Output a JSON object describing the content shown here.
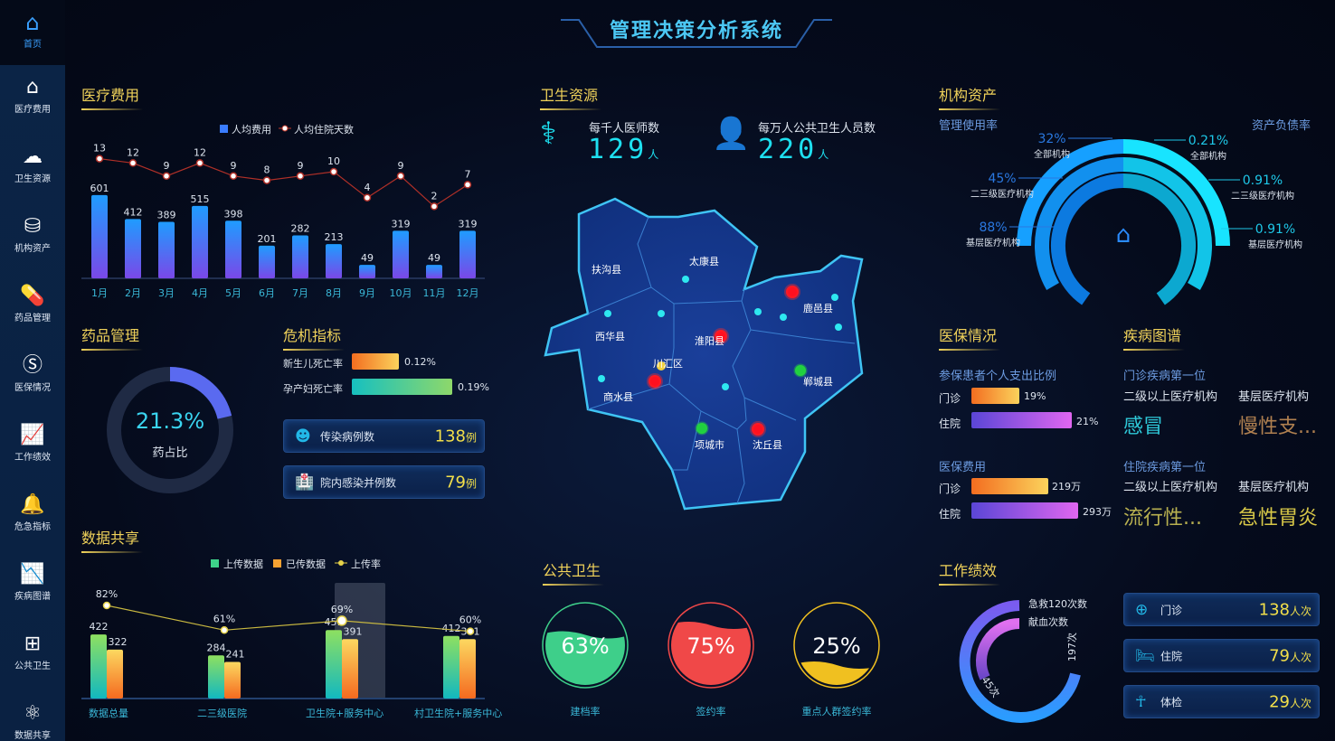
{
  "title": "管理决策分析系统",
  "sidebar": {
    "home": {
      "label": "首页",
      "icon": "home-icon"
    },
    "items": [
      {
        "label": "医疗费用",
        "icon": "house-yuan-icon"
      },
      {
        "label": "卫生资源",
        "icon": "cloud-icon"
      },
      {
        "label": "机构资产",
        "icon": "coins-icon"
      },
      {
        "label": "药品管理",
        "icon": "pill-icon"
      },
      {
        "label": "医保情况",
        "icon": "si-icon"
      },
      {
        "label": "工作绩效",
        "icon": "line-chart-icon"
      },
      {
        "label": "危急指标",
        "icon": "bell-icon"
      },
      {
        "label": "疾病图谱",
        "icon": "trend-icon"
      },
      {
        "label": "公共卫生",
        "icon": "plus-box-icon"
      },
      {
        "label": "数据共享",
        "icon": "share-icon"
      }
    ]
  },
  "sections": {
    "medical_cost": "医疗费用",
    "health_resources": "卫生资源",
    "assets": "机构资产",
    "drug": "药品管理",
    "crisis": "危机指标",
    "insurance": "医保情况",
    "disease": "疾病图谱",
    "data_share": "数据共享",
    "public_health": "公共卫生",
    "performance": "工作绩效"
  },
  "chart_data": [
    {
      "type": "bar",
      "name": "medical-cost",
      "legend": [
        "人均费用",
        "人均住院天数"
      ],
      "categories": [
        "1月",
        "2月",
        "3月",
        "4月",
        "5月",
        "6月",
        "7月",
        "8月",
        "9月",
        "10月",
        "11月",
        "12月"
      ],
      "series": [
        {
          "name": "人均费用",
          "type": "bar",
          "values": [
            601,
            412,
            389,
            515,
            398,
            201,
            282,
            213,
            49,
            319,
            49,
            319
          ],
          "color": "#2a9cff"
        },
        {
          "name": "人均住院天数",
          "type": "line",
          "values": [
            13,
            12,
            9,
            12,
            9,
            8,
            9,
            10,
            4,
            9,
            2,
            7
          ],
          "color": "#c0392b"
        }
      ]
    },
    {
      "type": "bar",
      "name": "data-share",
      "legend": [
        "上传数据",
        "已传数据",
        "上传率"
      ],
      "categories": [
        "数据总量",
        "二三级医院",
        "卫生院+服务中心",
        "村卫生院+服务中心"
      ],
      "series": [
        {
          "name": "上传数据",
          "type": "bar",
          "values": [
            422,
            284,
            451,
            412
          ],
          "color": "#3ed28a"
        },
        {
          "name": "已传数据",
          "type": "bar",
          "values": [
            322,
            241,
            391,
            391
          ],
          "color": "#f7a232"
        },
        {
          "name": "上传率",
          "type": "line",
          "values": [
            82,
            61,
            69,
            60
          ],
          "unit": "%",
          "color": "#e6d24a"
        }
      ],
      "highlight": "卫生院+服务中心"
    }
  ],
  "health": {
    "doctors": {
      "label": "每千人医师数",
      "value": "129",
      "unit": "人"
    },
    "staff": {
      "label": "每万人公共卫生人员数",
      "value": "220",
      "unit": "人"
    }
  },
  "map": {
    "counties": [
      "扶沟县",
      "太康县",
      "西华县",
      "淮阳县",
      "鹿邑县",
      "川汇区",
      "商水县",
      "郸城县",
      "项城市",
      "沈丘县"
    ]
  },
  "assets": {
    "left_title": "管理使用率",
    "right_title": "资产负债率",
    "left": [
      {
        "value": "32%",
        "label": "全部机构"
      },
      {
        "value": "45%",
        "label": "二三级医疗机构"
      },
      {
        "value": "88%",
        "label": "基层医疗机构"
      }
    ],
    "right": [
      {
        "value": "0.21%",
        "label": "全部机构"
      },
      {
        "value": "0.91%",
        "label": "二三级医疗机构"
      },
      {
        "value": "0.91%",
        "label": "基层医疗机构"
      }
    ]
  },
  "drug": {
    "value": "21.3%",
    "label": "药占比",
    "fraction": 0.213
  },
  "crisis": {
    "rates": [
      {
        "label": "新生儿死亡率",
        "value": "0.12%"
      },
      {
        "label": "孕产妇死亡率",
        "value": "0.19%"
      }
    ],
    "cards": [
      {
        "label": "传染病例数",
        "value": "138",
        "unit": "例",
        "icon": "virus-icon"
      },
      {
        "label": "院内感染并例数",
        "value": "79",
        "unit": "例",
        "icon": "hospital-icon"
      }
    ]
  },
  "insurance": {
    "ratio_title": "参保患者个人支出比例",
    "ratio": [
      {
        "label": "门诊",
        "value": "19%"
      },
      {
        "label": "住院",
        "value": "21%"
      }
    ],
    "cost_title": "医保费用",
    "cost": [
      {
        "label": "门诊",
        "value": "219万"
      },
      {
        "label": "住院",
        "value": "293万"
      }
    ]
  },
  "disease": {
    "outpatient": {
      "title": "门诊疾病第一位",
      "cols": [
        "二级以上医疗机构",
        "基层医疗机构"
      ],
      "values": [
        "感冒",
        "慢性支..."
      ]
    },
    "inpatient": {
      "title": "住院疾病第一位",
      "cols": [
        "二级以上医疗机构",
        "基层医疗机构"
      ],
      "values": [
        "流行性...",
        "急性胃炎"
      ]
    }
  },
  "public_health": [
    {
      "value": "63%",
      "label": "建档率",
      "fraction": 0.63,
      "color": "#3ecf8a"
    },
    {
      "value": "75%",
      "label": "签约率",
      "fraction": 0.75,
      "color": "#f04848"
    },
    {
      "value": "25%",
      "label": "重点人群签约率",
      "fraction": 0.25,
      "color": "#f0c020"
    }
  ],
  "performance": {
    "legend": [
      "急救120次数",
      "献血次数"
    ],
    "emergency": "197次",
    "blood": "45次",
    "cards": [
      {
        "label": "门诊",
        "value": "138",
        "unit": "人次",
        "icon": "clinic-icon"
      },
      {
        "label": "住院",
        "value": "79",
        "unit": "人次",
        "icon": "bed-icon"
      },
      {
        "label": "体检",
        "value": "29",
        "unit": "人次",
        "icon": "checkup-icon"
      }
    ]
  }
}
